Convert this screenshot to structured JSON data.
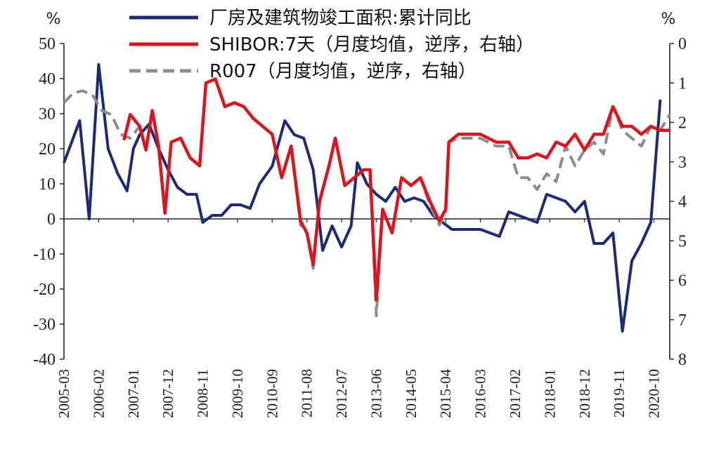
{
  "chart_data": {
    "type": "line",
    "left_unit": "%",
    "right_unit": "%",
    "x_tick_labels": [
      "2005-03",
      "2006-02",
      "2007-01",
      "2007-12",
      "2008-11",
      "2009-10",
      "2010-09",
      "2011-08",
      "2012-07",
      "2013-06",
      "2014-05",
      "2015-04",
      "2016-03",
      "2017-02",
      "2018-01",
      "2018-12",
      "2019-11",
      "2020-10"
    ],
    "x_range": [
      "2005-03",
      "2021-03"
    ],
    "left_axis": {
      "ticks": [
        50,
        40,
        30,
        20,
        10,
        0,
        -10,
        -20,
        -30,
        -40
      ],
      "ylim": [
        -40,
        50
      ]
    },
    "right_axis": {
      "ticks": [
        0,
        1,
        2,
        3,
        4,
        5,
        6,
        7,
        8
      ],
      "ylim": [
        0,
        8
      ],
      "inverted": true
    },
    "zero_line": true,
    "legend_position": "top",
    "series": [
      {
        "name": "厂房及建筑物竣工面积:累计同比",
        "axis": "left",
        "color": "#1a2b7a",
        "style": "solid",
        "points": [
          [
            "2005-03",
            16
          ],
          [
            "2005-08",
            28
          ],
          [
            "2005-11",
            0
          ],
          [
            "2006-02",
            44
          ],
          [
            "2006-05",
            20
          ],
          [
            "2006-08",
            13
          ],
          [
            "2006-11",
            8
          ],
          [
            "2007-01",
            20
          ],
          [
            "2007-03",
            24
          ],
          [
            "2007-06",
            27
          ],
          [
            "2007-09",
            20
          ],
          [
            "2007-12",
            14
          ],
          [
            "2008-03",
            9
          ],
          [
            "2008-06",
            7
          ],
          [
            "2008-09",
            7
          ],
          [
            "2008-11",
            -1
          ],
          [
            "2009-02",
            1
          ],
          [
            "2009-05",
            1
          ],
          [
            "2009-08",
            4
          ],
          [
            "2009-11",
            4
          ],
          [
            "2010-02",
            3
          ],
          [
            "2010-05",
            10
          ],
          [
            "2010-09",
            15
          ],
          [
            "2011-01",
            28
          ],
          [
            "2011-04",
            24
          ],
          [
            "2011-07",
            23
          ],
          [
            "2011-10",
            14
          ],
          [
            "2012-01",
            -9
          ],
          [
            "2012-04",
            -2
          ],
          [
            "2012-07",
            -8
          ],
          [
            "2012-10",
            -2
          ],
          [
            "2012-12",
            16
          ],
          [
            "2013-03",
            10
          ],
          [
            "2013-06",
            7
          ],
          [
            "2013-09",
            5
          ],
          [
            "2013-12",
            9
          ],
          [
            "2014-03",
            5
          ],
          [
            "2014-06",
            6
          ],
          [
            "2014-09",
            5
          ],
          [
            "2014-12",
            1
          ],
          [
            "2015-03",
            -1
          ],
          [
            "2015-06",
            -3
          ],
          [
            "2015-09",
            -3
          ],
          [
            "2015-12",
            -3
          ],
          [
            "2016-03",
            -3
          ],
          [
            "2016-06",
            -4
          ],
          [
            "2016-09",
            -5
          ],
          [
            "2016-12",
            2
          ],
          [
            "2017-03",
            1
          ],
          [
            "2017-06",
            0
          ],
          [
            "2017-09",
            -1
          ],
          [
            "2017-12",
            7
          ],
          [
            "2018-03",
            6
          ],
          [
            "2018-06",
            5
          ],
          [
            "2018-09",
            2
          ],
          [
            "2018-12",
            5
          ],
          [
            "2019-03",
            -7
          ],
          [
            "2019-06",
            -7
          ],
          [
            "2019-09",
            -4
          ],
          [
            "2019-12",
            -32
          ],
          [
            "2020-03",
            -12
          ],
          [
            "2020-06",
            -7
          ],
          [
            "2020-09",
            -1
          ],
          [
            "2020-12",
            34
          ]
        ]
      },
      {
        "name": "SHIBOR:7天（月度均值，逆序，右轴）",
        "axis": "right",
        "color": "#e0121b",
        "style": "solid",
        "points": [
          [
            "2006-10",
            2.45
          ],
          [
            "2006-12",
            1.8
          ],
          [
            "2007-03",
            2.1
          ],
          [
            "2007-05",
            2.7
          ],
          [
            "2007-07",
            1.7
          ],
          [
            "2007-09",
            2.6
          ],
          [
            "2007-11",
            4.3
          ],
          [
            "2008-01",
            2.5
          ],
          [
            "2008-04",
            2.4
          ],
          [
            "2008-07",
            2.9
          ],
          [
            "2008-10",
            3.1
          ],
          [
            "2008-12",
            1.0
          ],
          [
            "2009-03",
            0.9
          ],
          [
            "2009-06",
            1.6
          ],
          [
            "2009-09",
            1.5
          ],
          [
            "2009-12",
            1.6
          ],
          [
            "2010-03",
            1.9
          ],
          [
            "2010-06",
            2.1
          ],
          [
            "2010-09",
            2.3
          ],
          [
            "2010-12",
            3.4
          ],
          [
            "2011-03",
            2.6
          ],
          [
            "2011-06",
            4.5
          ],
          [
            "2011-08",
            4.8
          ],
          [
            "2011-10",
            5.6
          ],
          [
            "2011-12",
            4.0
          ],
          [
            "2012-03",
            3.1
          ],
          [
            "2012-05",
            2.4
          ],
          [
            "2012-08",
            3.6
          ],
          [
            "2012-11",
            3.4
          ],
          [
            "2013-02",
            3.2
          ],
          [
            "2013-04",
            3.2
          ],
          [
            "2013-06",
            6.5
          ],
          [
            "2013-08",
            4.2
          ],
          [
            "2013-11",
            4.8
          ],
          [
            "2014-02",
            3.4
          ],
          [
            "2014-05",
            3.6
          ],
          [
            "2014-08",
            3.4
          ],
          [
            "2014-11",
            4.0
          ],
          [
            "2015-02",
            4.5
          ],
          [
            "2015-04",
            4.2
          ],
          [
            "2015-05",
            2.5
          ],
          [
            "2015-08",
            2.3
          ],
          [
            "2015-11",
            2.3
          ],
          [
            "2016-03",
            2.3
          ],
          [
            "2016-08",
            2.5
          ],
          [
            "2016-12",
            2.5
          ],
          [
            "2017-03",
            2.9
          ],
          [
            "2017-06",
            2.9
          ],
          [
            "2017-09",
            2.8
          ],
          [
            "2017-12",
            2.9
          ],
          [
            "2018-03",
            2.5
          ],
          [
            "2018-06",
            2.6
          ],
          [
            "2018-09",
            2.3
          ],
          [
            "2018-12",
            2.7
          ],
          [
            "2019-03",
            2.3
          ],
          [
            "2019-06",
            2.3
          ],
          [
            "2019-09",
            1.6
          ],
          [
            "2019-12",
            2.1
          ],
          [
            "2020-03",
            2.1
          ],
          [
            "2020-06",
            2.3
          ],
          [
            "2020-09",
            2.1
          ],
          [
            "2020-12",
            2.2
          ],
          [
            "2021-03",
            2.2
          ]
        ]
      },
      {
        "name": "R007（月度均值，逆序，右轴）",
        "axis": "right",
        "color": "#8c8c8c",
        "style": "dashed",
        "points": [
          [
            "2005-03",
            1.5
          ],
          [
            "2005-06",
            1.25
          ],
          [
            "2005-09",
            1.2
          ],
          [
            "2005-12",
            1.3
          ],
          [
            "2006-03",
            1.7
          ],
          [
            "2006-06",
            1.8
          ],
          [
            "2006-09",
            2.3
          ],
          [
            "2006-12",
            2.4
          ],
          [
            "2007-03",
            2.1
          ],
          [
            "2007-05",
            2.7
          ],
          [
            "2007-07",
            1.7
          ],
          [
            "2007-09",
            2.6
          ],
          [
            "2007-11",
            4.3
          ],
          [
            "2008-01",
            2.5
          ],
          [
            "2008-04",
            2.4
          ],
          [
            "2008-07",
            2.9
          ],
          [
            "2008-10",
            3.1
          ],
          [
            "2008-12",
            1.0
          ],
          [
            "2009-03",
            0.9
          ],
          [
            "2009-06",
            1.6
          ],
          [
            "2009-09",
            1.5
          ],
          [
            "2009-12",
            1.6
          ],
          [
            "2010-03",
            1.9
          ],
          [
            "2010-06",
            2.1
          ],
          [
            "2010-09",
            2.3
          ],
          [
            "2010-12",
            3.4
          ],
          [
            "2011-03",
            2.6
          ],
          [
            "2011-06",
            4.6
          ],
          [
            "2011-08",
            4.8
          ],
          [
            "2011-10",
            5.7
          ],
          [
            "2011-12",
            4.0
          ],
          [
            "2012-03",
            3.1
          ],
          [
            "2012-05",
            2.4
          ],
          [
            "2012-08",
            3.6
          ],
          [
            "2012-11",
            3.4
          ],
          [
            "2013-02",
            3.2
          ],
          [
            "2013-04",
            3.2
          ],
          [
            "2013-06",
            6.9
          ],
          [
            "2013-08",
            4.2
          ],
          [
            "2013-11",
            4.8
          ],
          [
            "2014-02",
            3.4
          ],
          [
            "2014-05",
            3.6
          ],
          [
            "2014-08",
            3.4
          ],
          [
            "2014-11",
            4.1
          ],
          [
            "2015-02",
            4.6
          ],
          [
            "2015-04",
            4.3
          ],
          [
            "2015-05",
            2.5
          ],
          [
            "2015-08",
            2.4
          ],
          [
            "2015-11",
            2.4
          ],
          [
            "2016-03",
            2.4
          ],
          [
            "2016-08",
            2.6
          ],
          [
            "2016-12",
            2.6
          ],
          [
            "2017-03",
            3.4
          ],
          [
            "2017-06",
            3.4
          ],
          [
            "2017-09",
            3.7
          ],
          [
            "2017-12",
            3.3
          ],
          [
            "2018-03",
            3.5
          ],
          [
            "2018-06",
            2.6
          ],
          [
            "2018-09",
            3.1
          ],
          [
            "2018-12",
            2.7
          ],
          [
            "2019-03",
            2.5
          ],
          [
            "2019-06",
            2.8
          ],
          [
            "2019-09",
            1.6
          ],
          [
            "2019-12",
            2.2
          ],
          [
            "2020-03",
            2.4
          ],
          [
            "2020-06",
            2.6
          ],
          [
            "2020-09",
            2.1
          ],
          [
            "2020-12",
            2.2
          ],
          [
            "2021-03",
            1.8
          ]
        ]
      }
    ]
  }
}
